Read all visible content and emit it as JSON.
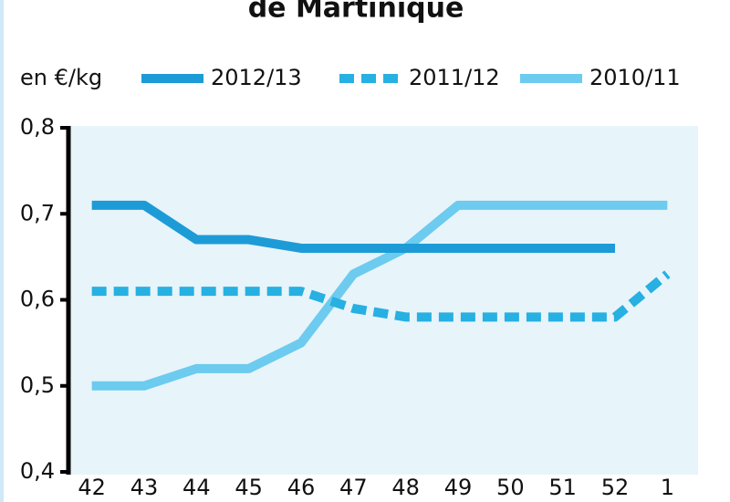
{
  "chart_data": {
    "type": "line",
    "title": "de Martinique",
    "y_label": "en €/kg",
    "categories": [
      "42",
      "43",
      "44",
      "45",
      "46",
      "47",
      "48",
      "49",
      "50",
      "51",
      "52",
      "1"
    ],
    "series": [
      {
        "name": "2012/13",
        "color": "#1d9bd7",
        "dash": "solid",
        "values": [
          0.71,
          0.71,
          0.67,
          0.67,
          0.66,
          0.66,
          0.66,
          0.66,
          0.66,
          0.66,
          0.66,
          null
        ]
      },
      {
        "name": "2011/12",
        "color": "#27b0e2",
        "dash": "dashed",
        "values": [
          0.61,
          0.61,
          0.61,
          0.61,
          0.61,
          0.59,
          0.58,
          0.58,
          0.58,
          0.58,
          0.58,
          0.63
        ]
      },
      {
        "name": "2010/11",
        "color": "#6ccbef",
        "dash": "solid",
        "values": [
          0.5,
          0.5,
          0.52,
          0.52,
          0.55,
          0.63,
          0.66,
          0.71,
          0.71,
          0.71,
          0.71,
          0.71
        ]
      }
    ],
    "ylim": [
      0.4,
      0.8
    ],
    "yticks": [
      {
        "value": 0.4,
        "label": "0,4"
      },
      {
        "value": 0.5,
        "label": "0,5"
      },
      {
        "value": 0.6,
        "label": "0,6"
      },
      {
        "value": 0.7,
        "label": "0,7"
      },
      {
        "value": 0.8,
        "label": "0,8"
      }
    ],
    "grid": false
  }
}
